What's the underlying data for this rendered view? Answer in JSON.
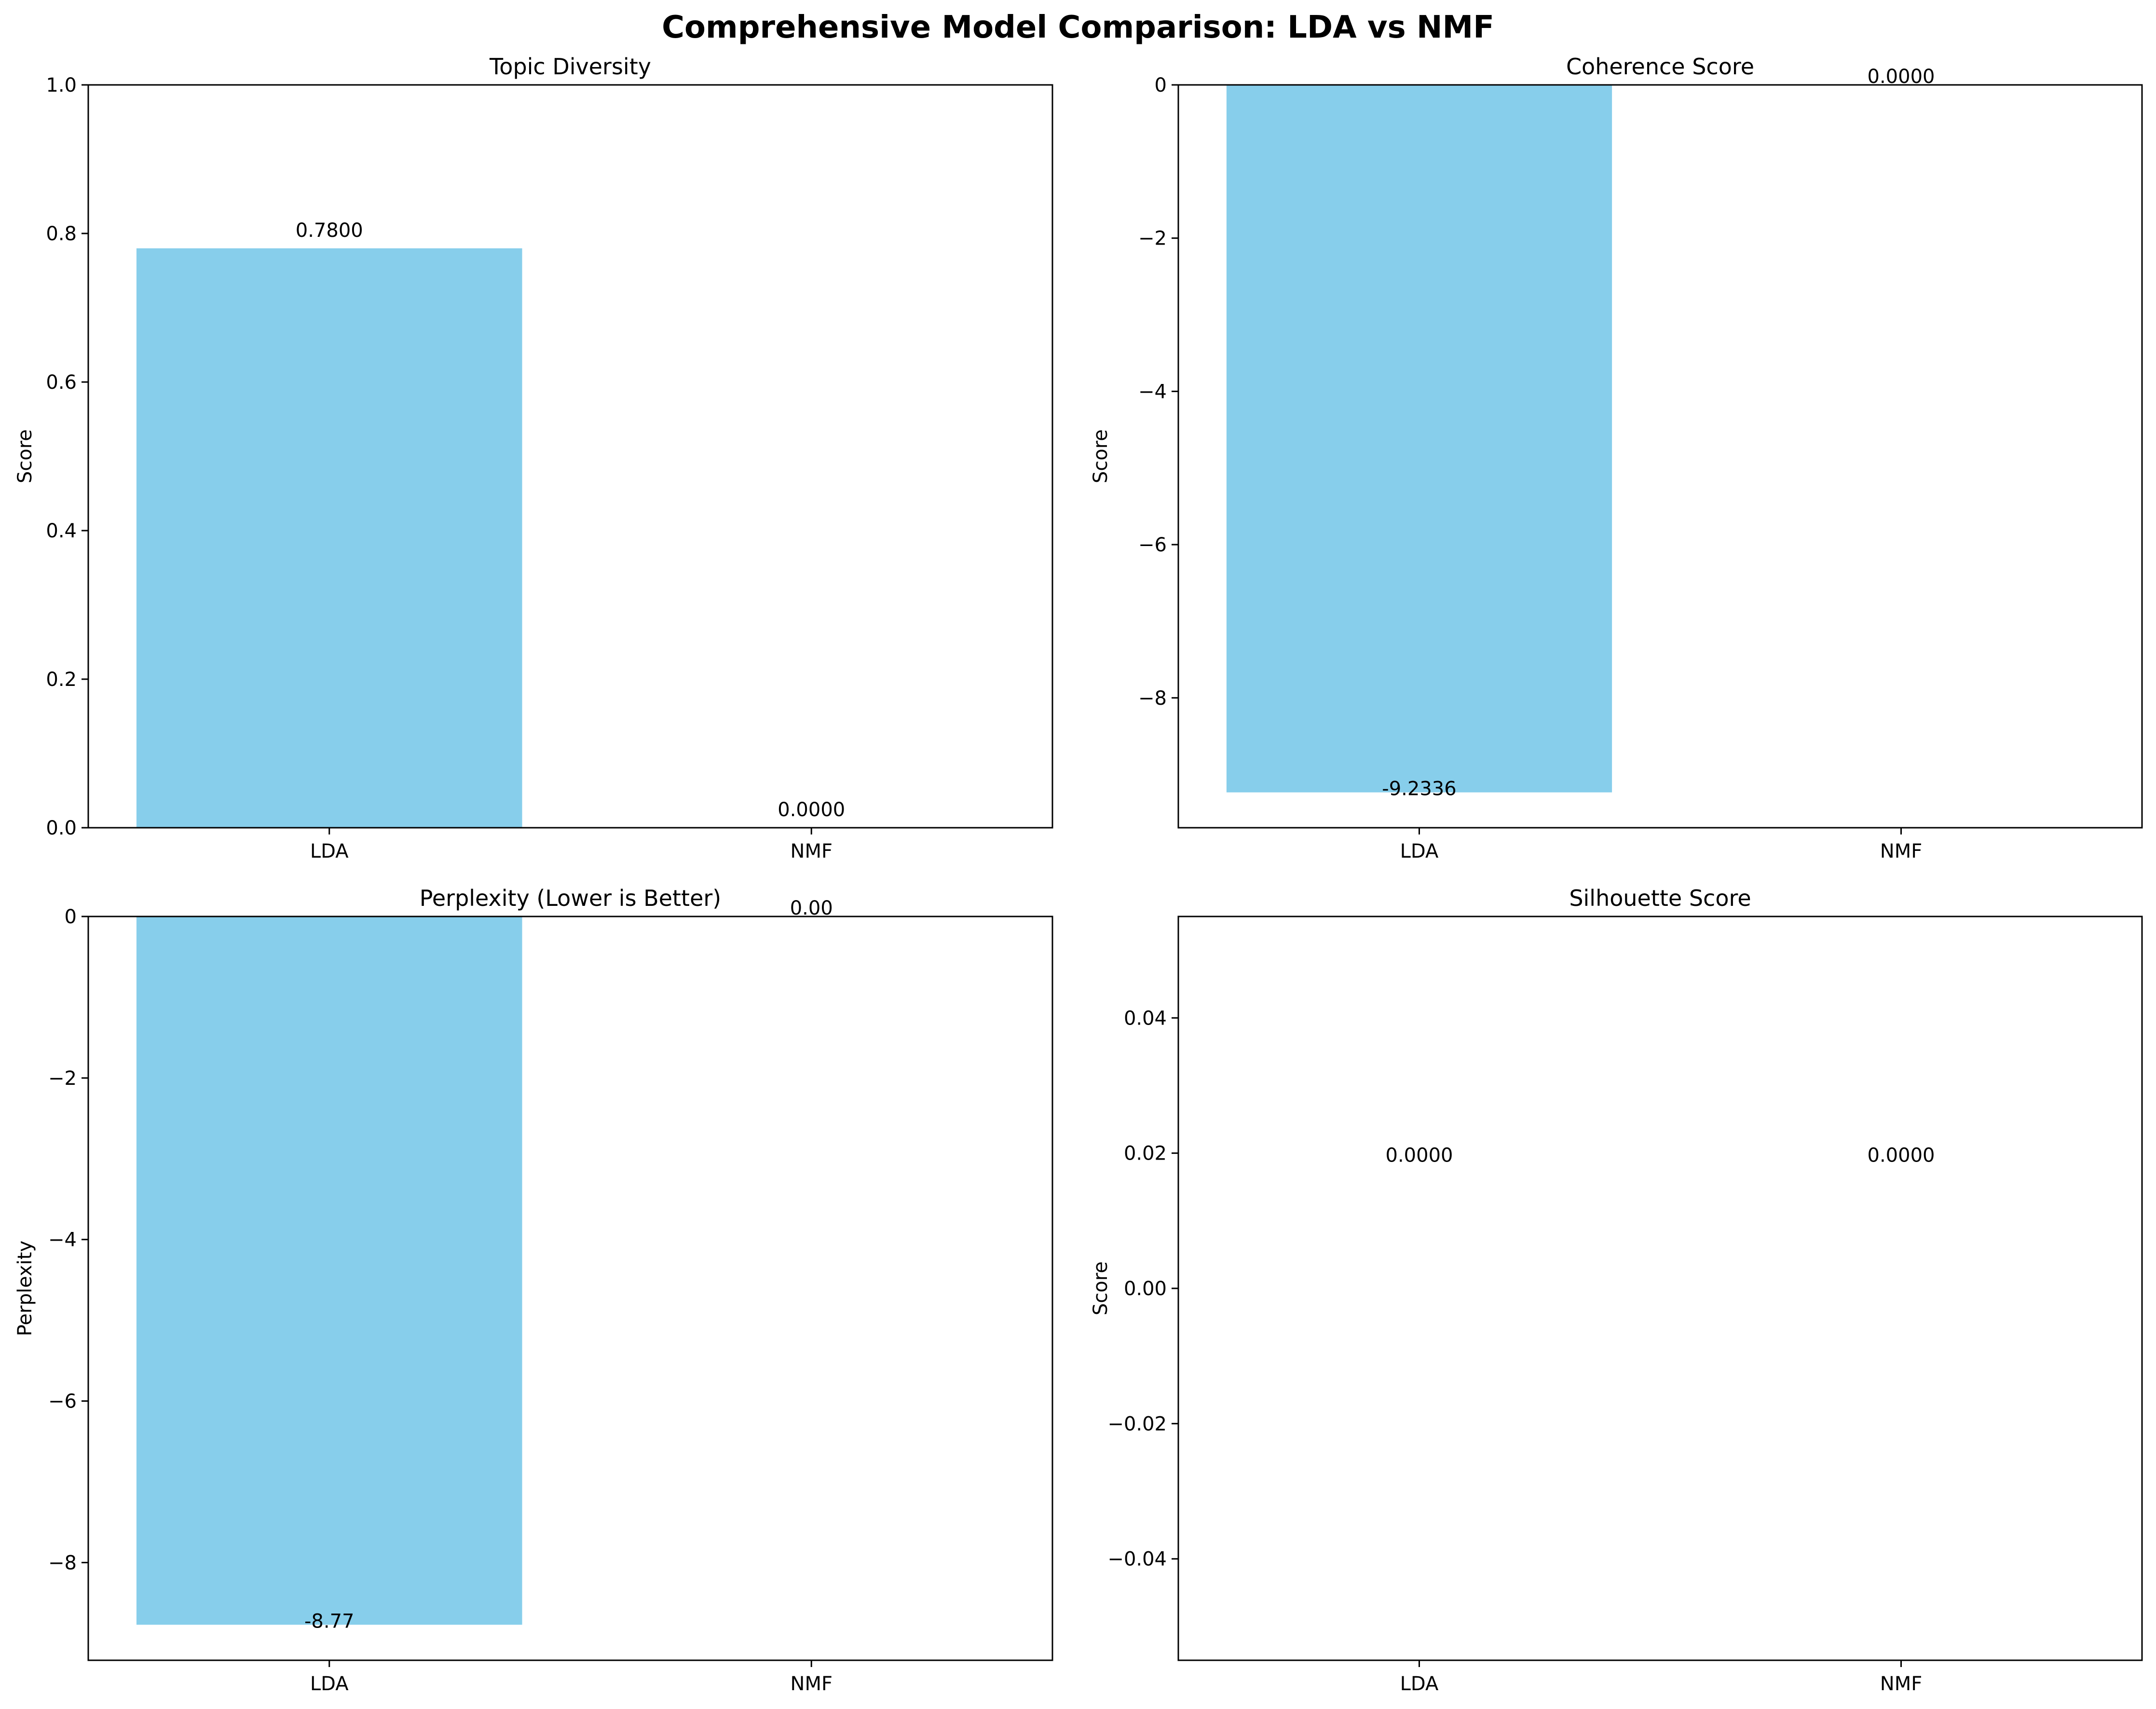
{
  "figure": {
    "suptitle": "Comprehensive Model Comparison: LDA vs NMF"
  },
  "colors": {
    "bar": "#87ceeb",
    "axis": "#000000",
    "background": "#ffffff"
  },
  "chart_data": [
    {
      "type": "bar",
      "title": "Topic Diversity",
      "xlabel": "",
      "ylabel": "Score",
      "categories": [
        "LDA",
        "NMF"
      ],
      "values": [
        0.78,
        0.0
      ],
      "value_labels": [
        "0.7800",
        "0.0000"
      ],
      "ylim": [
        0,
        1.0
      ],
      "yticks": [
        0.0,
        0.2,
        0.4,
        0.6,
        0.8,
        1.0
      ],
      "ytick_labels": [
        "0.0",
        "0.2",
        "0.4",
        "0.6",
        "0.8",
        "1.0"
      ],
      "grid": false
    },
    {
      "type": "bar",
      "title": "Coherence Score",
      "xlabel": "",
      "ylabel": "Score",
      "categories": [
        "LDA",
        "NMF"
      ],
      "values": [
        -9.2336,
        0.0
      ],
      "value_labels": [
        "-9.2336",
        "0.0000"
      ],
      "ylim": [
        -9.695,
        0
      ],
      "yticks": [
        0,
        -2,
        -4,
        -6,
        -8
      ],
      "ytick_labels": [
        "0",
        "−2",
        "−4",
        "−6",
        "−8"
      ],
      "grid": false
    },
    {
      "type": "bar",
      "title": "Perplexity (Lower is Better)",
      "xlabel": "",
      "ylabel": "Perplexity",
      "categories": [
        "LDA",
        "NMF"
      ],
      "values": [
        -8.77,
        0.0
      ],
      "value_labels": [
        "-8.77",
        "0.00"
      ],
      "ylim": [
        -9.21,
        0
      ],
      "yticks": [
        0,
        -2,
        -4,
        -6,
        -8
      ],
      "ytick_labels": [
        "0",
        "−2",
        "−4",
        "−6",
        "−8"
      ],
      "grid": false
    },
    {
      "type": "bar",
      "title": "Silhouette Score",
      "xlabel": "",
      "ylabel": "Score",
      "categories": [
        "LDA",
        "NMF"
      ],
      "values": [
        0.0,
        0.0
      ],
      "value_labels": [
        "0.0000",
        "0.0000"
      ],
      "ylim": [
        -0.055,
        0.055
      ],
      "yticks": [
        0.04,
        0.02,
        0.0,
        -0.02,
        -0.04
      ],
      "ytick_labels": [
        "0.04",
        "0.02",
        "0.00",
        "−0.02",
        "−0.04"
      ],
      "label_value_position": 0.02,
      "grid": false
    }
  ]
}
